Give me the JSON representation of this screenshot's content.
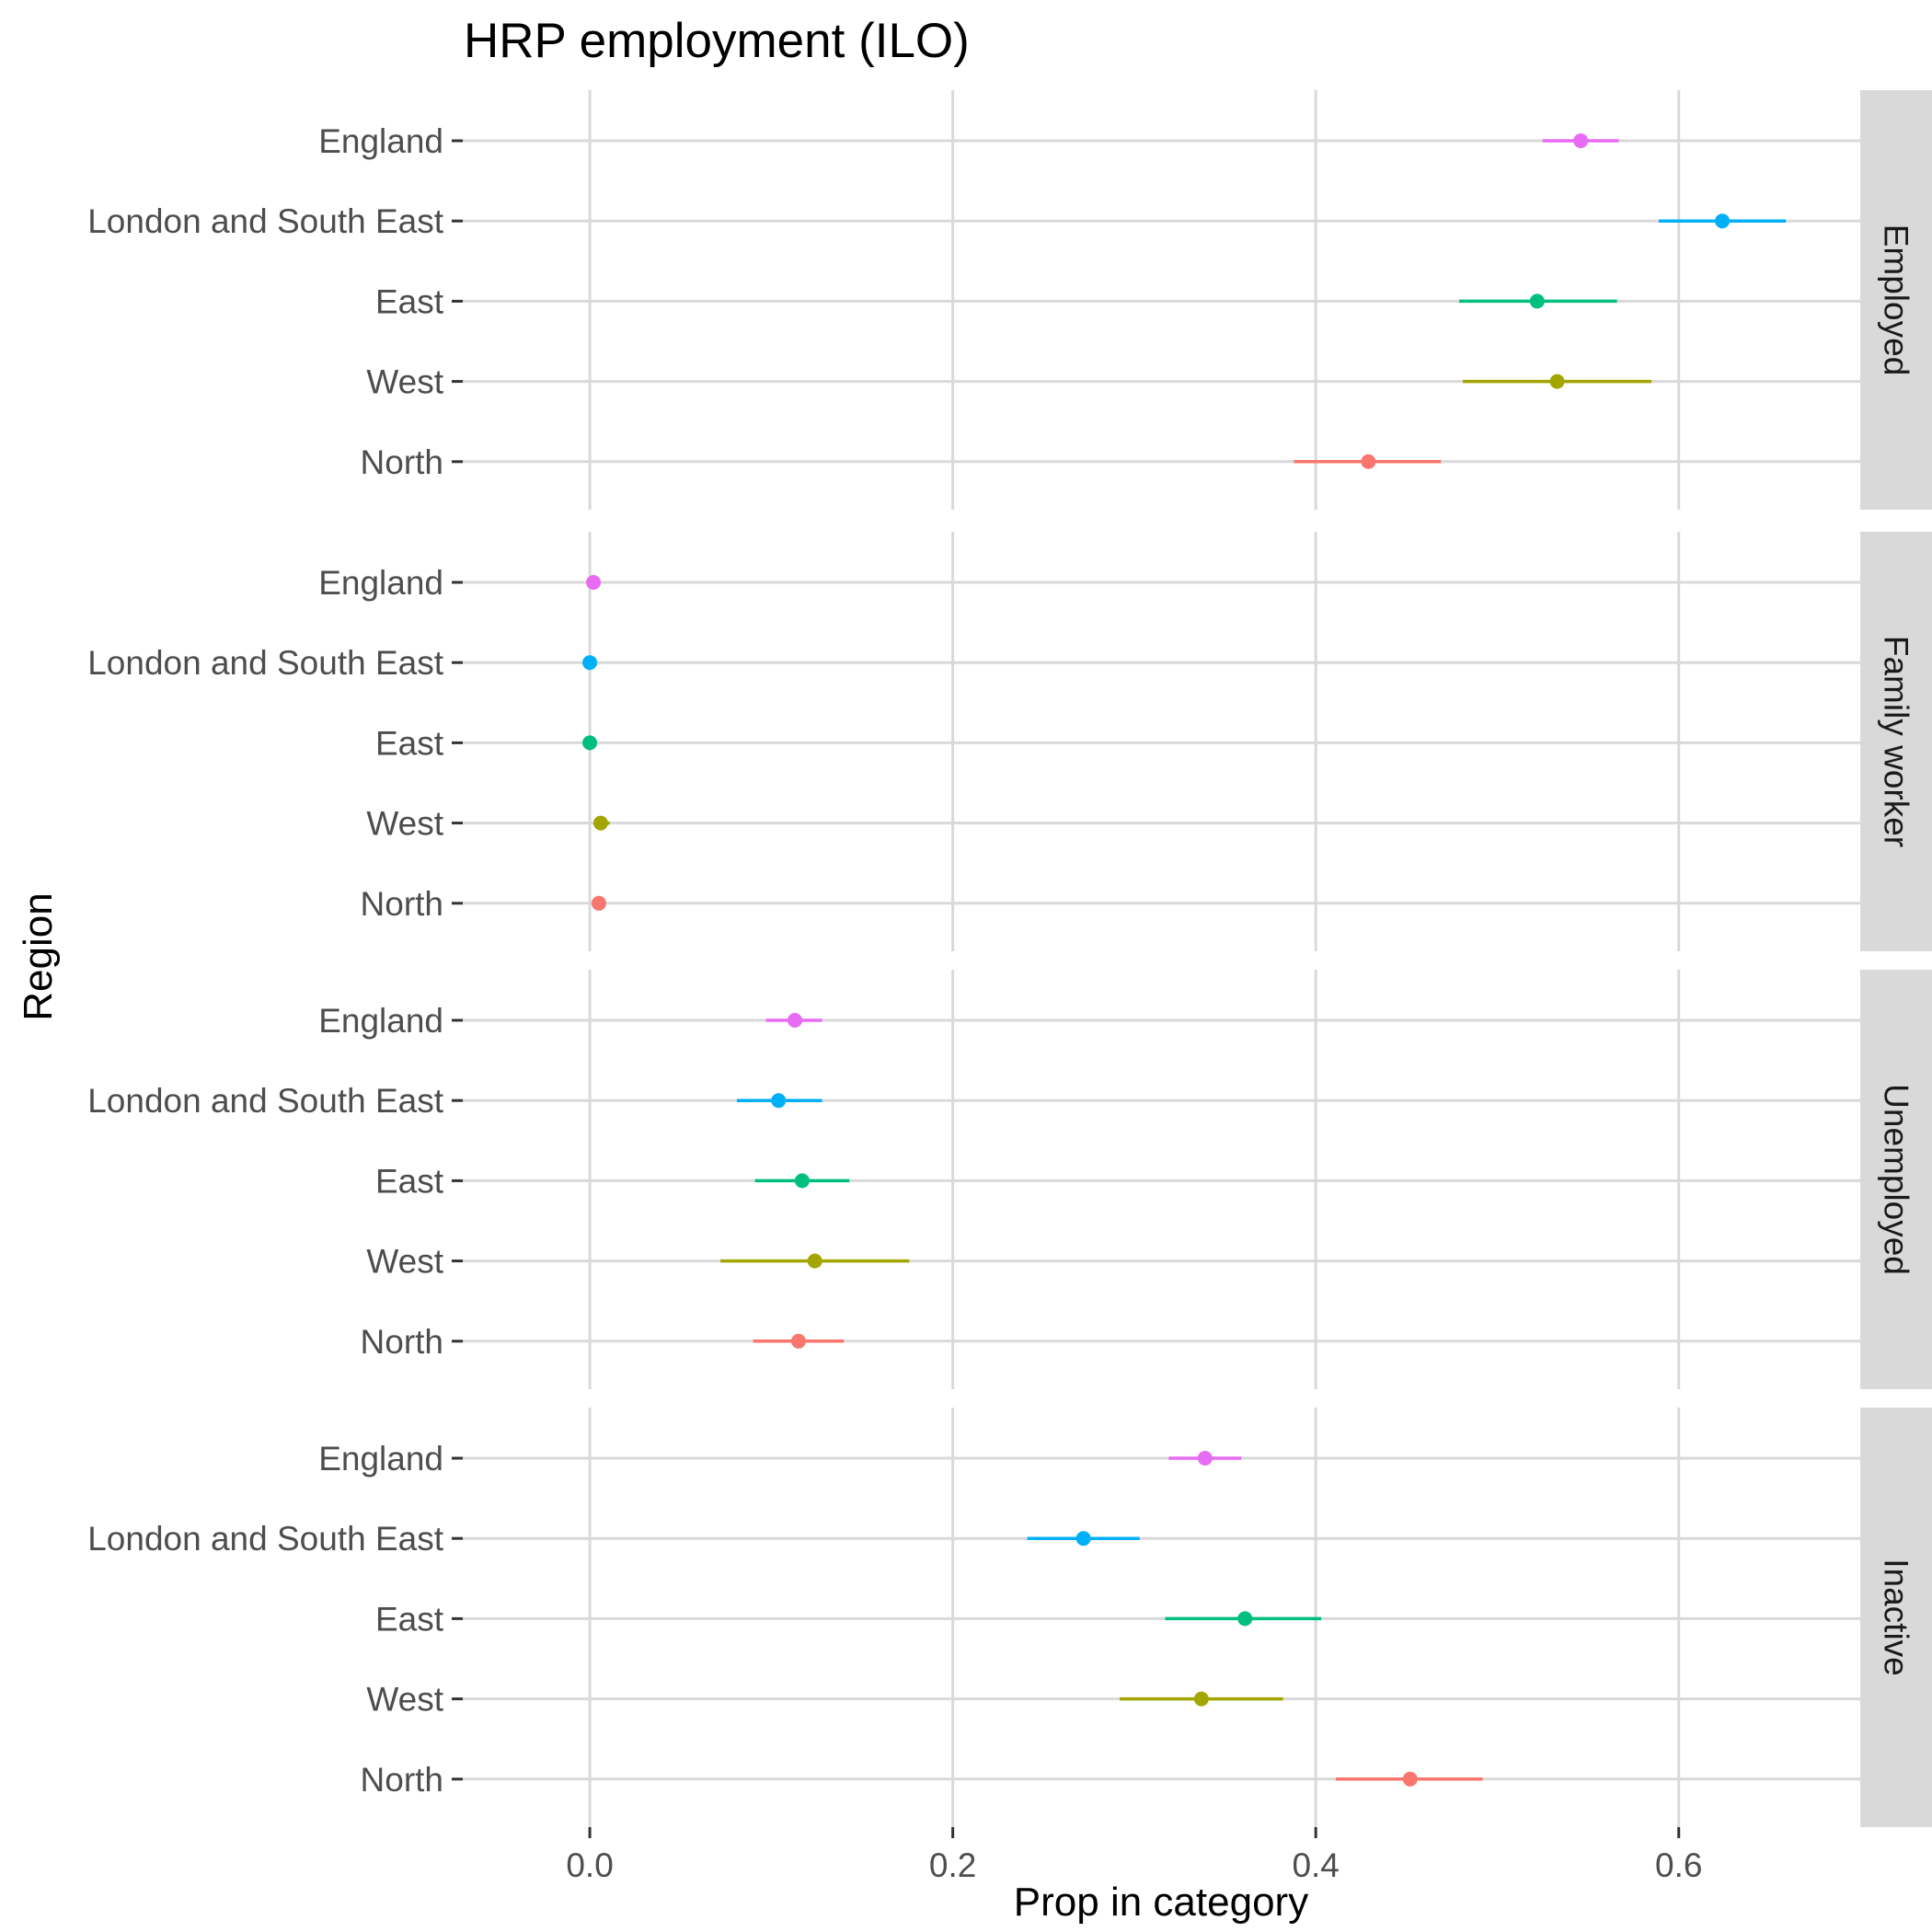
{
  "chart_data": {
    "type": "scatter",
    "title": "HRP employment (ILO)",
    "xlabel": "Prop in category",
    "ylabel": "Region",
    "xlim": [
      -0.07,
      0.7
    ],
    "x_ticks": [
      0.0,
      0.2,
      0.4,
      0.6
    ],
    "x_tick_labels": [
      "0.0",
      "0.2",
      "0.4",
      "0.6"
    ],
    "categories": [
      "England",
      "London and South East",
      "East",
      "West",
      "North"
    ],
    "colors": {
      "England": "#e76bf3",
      "London and South East": "#00b0f6",
      "East": "#00bf7d",
      "West": "#a3a500",
      "North": "#f8766d"
    },
    "grid": true,
    "legend": "none",
    "panels": [
      {
        "name": "Employed",
        "points": [
          {
            "region": "England",
            "x": 0.546,
            "low": 0.525,
            "high": 0.567
          },
          {
            "region": "London and South East",
            "x": 0.624,
            "low": 0.589,
            "high": 0.659
          },
          {
            "region": "East",
            "x": 0.522,
            "low": 0.479,
            "high": 0.566
          },
          {
            "region": "West",
            "x": 0.533,
            "low": 0.481,
            "high": 0.585
          },
          {
            "region": "North",
            "x": 0.429,
            "low": 0.388,
            "high": 0.469
          }
        ]
      },
      {
        "name": "Family worker",
        "points": [
          {
            "region": "England",
            "x": 0.002,
            "low": 0.001,
            "high": 0.004
          },
          {
            "region": "London and South East",
            "x": 0.0,
            "low": 0.0,
            "high": 0.001
          },
          {
            "region": "East",
            "x": 0.0,
            "low": 0.0,
            "high": 0.001
          },
          {
            "region": "West",
            "x": 0.006,
            "low": 0.002,
            "high": 0.011
          },
          {
            "region": "North",
            "x": 0.005,
            "low": 0.002,
            "high": 0.008
          }
        ]
      },
      {
        "name": "Unemployed",
        "points": [
          {
            "region": "England",
            "x": 0.113,
            "low": 0.097,
            "high": 0.128
          },
          {
            "region": "London and South East",
            "x": 0.104,
            "low": 0.081,
            "high": 0.128
          },
          {
            "region": "East",
            "x": 0.117,
            "low": 0.091,
            "high": 0.143
          },
          {
            "region": "West",
            "x": 0.124,
            "low": 0.072,
            "high": 0.176
          },
          {
            "region": "North",
            "x": 0.115,
            "low": 0.09,
            "high": 0.14
          }
        ]
      },
      {
        "name": "Inactive",
        "points": [
          {
            "region": "England",
            "x": 0.339,
            "low": 0.319,
            "high": 0.359
          },
          {
            "region": "London and South East",
            "x": 0.272,
            "low": 0.241,
            "high": 0.303
          },
          {
            "region": "East",
            "x": 0.361,
            "low": 0.317,
            "high": 0.403
          },
          {
            "region": "West",
            "x": 0.337,
            "low": 0.292,
            "high": 0.382
          },
          {
            "region": "North",
            "x": 0.452,
            "low": 0.411,
            "high": 0.492
          }
        ]
      }
    ]
  }
}
